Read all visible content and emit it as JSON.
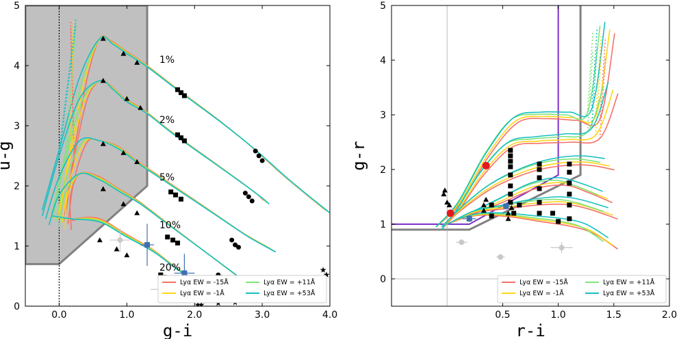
{
  "chart_data": [
    {
      "type": "line",
      "xlabel": "g-i",
      "ylabel": "u-g",
      "xlim": [
        -0.5,
        4.0
      ],
      "ylim": [
        0,
        5
      ],
      "xticks": [
        {
          "v": 0,
          "label": "0.0"
        },
        {
          "v": 1,
          "label": "1.0"
        },
        {
          "v": 2,
          "label": "2.0"
        },
        {
          "v": 3,
          "label": "3.0"
        },
        {
          "v": 4,
          "label": "4.0"
        }
      ],
      "yticks": [
        {
          "v": 0,
          "label": "0"
        },
        {
          "v": 1,
          "label": "1"
        },
        {
          "v": 2,
          "label": "2"
        },
        {
          "v": 3,
          "label": "3"
        },
        {
          "v": 4,
          "label": "4"
        },
        {
          "v": 5,
          "label": "5"
        }
      ],
      "selection_region": [
        [
          -0.5,
          0.7
        ],
        [
          0.0,
          0.7
        ],
        [
          1.3,
          2.0
        ],
        [
          1.3,
          5.0
        ],
        [
          -0.5,
          5.0
        ]
      ],
      "reference_lines": {
        "x": 0,
        "y": 0
      },
      "annotations": [
        {
          "text": "1%",
          "x": 1.4,
          "y": 4.1
        },
        {
          "text": "2%",
          "x": 1.4,
          "y": 3.1
        },
        {
          "text": "5%",
          "x": 1.4,
          "y": 2.15
        },
        {
          "text": "10%",
          "x": 1.4,
          "y": 1.35
        },
        {
          "text": "20%",
          "x": 1.4,
          "y": 0.65
        }
      ],
      "tracks": [
        {
          "name": "1%",
          "x": [
            -0.25,
            0.0,
            0.3,
            0.6,
            0.8,
            1.0,
            1.3,
            1.8,
            2.4,
            2.9,
            3.4,
            4.0
          ],
          "y": [
            1.6,
            2.6,
            3.8,
            4.45,
            4.35,
            4.2,
            3.98,
            3.55,
            3.05,
            2.6,
            2.1,
            1.55
          ],
          "curve": "middle"
        },
        {
          "name": "2%",
          "x": [
            -0.25,
            0.0,
            0.3,
            0.6,
            0.8,
            1.0,
            1.3,
            1.7,
            2.2,
            2.7,
            3.0,
            3.1
          ],
          "y": [
            1.5,
            2.5,
            3.45,
            3.75,
            3.6,
            3.4,
            3.2,
            2.85,
            2.45,
            2.05,
            1.8,
            1.7
          ],
          "curve": "middle"
        },
        {
          "name": "5%",
          "x": [
            -0.2,
            0.0,
            0.3,
            0.6,
            0.9,
            1.2,
            1.6,
            2.0,
            2.4,
            2.8,
            3.2
          ],
          "y": [
            1.45,
            2.15,
            2.75,
            2.75,
            2.6,
            2.35,
            2.05,
            1.75,
            1.45,
            1.15,
            0.9
          ],
          "curve": "middle"
        },
        {
          "name": "10%",
          "x": [
            -0.15,
            0.0,
            0.3,
            0.6,
            0.9,
            1.2,
            1.5,
            1.8,
            2.1,
            2.4,
            2.7
          ],
          "y": [
            1.35,
            1.85,
            2.2,
            2.1,
            1.9,
            1.7,
            1.45,
            1.2,
            0.95,
            0.7,
            0.45
          ],
          "curve": "middle"
        },
        {
          "name": "20%",
          "x": [
            -0.1,
            0.2,
            0.6,
            1.0,
            1.4,
            1.7,
            2.0,
            2.3,
            2.6
          ],
          "y": [
            1.5,
            1.45,
            1.4,
            1.15,
            0.9,
            0.65,
            0.42,
            0.25,
            0.12
          ],
          "curve": "middle"
        }
      ],
      "triangles": [
        [
          0.65,
          4.45
        ],
        [
          0.95,
          4.2
        ],
        [
          1.15,
          4.05
        ],
        [
          0.65,
          3.75
        ],
        [
          1.0,
          3.45
        ],
        [
          1.2,
          3.3
        ],
        [
          0.65,
          2.7
        ],
        [
          0.95,
          2.55
        ],
        [
          1.15,
          2.4
        ],
        [
          0.65,
          1.95
        ],
        [
          0.95,
          1.7
        ],
        [
          1.15,
          1.55
        ],
        [
          0.6,
          1.1
        ],
        [
          0.85,
          0.95
        ],
        [
          1.0,
          0.85
        ]
      ],
      "squares": [
        [
          1.75,
          3.6
        ],
        [
          1.8,
          3.55
        ],
        [
          1.85,
          3.5
        ],
        [
          1.75,
          2.85
        ],
        [
          1.8,
          2.8
        ],
        [
          1.85,
          2.75
        ],
        [
          1.65,
          1.9
        ],
        [
          1.72,
          1.85
        ],
        [
          1.8,
          1.78
        ],
        [
          1.6,
          1.15
        ],
        [
          1.68,
          1.1
        ],
        [
          1.75,
          1.05
        ],
        [
          1.5,
          0.52
        ],
        [
          1.55,
          0.48
        ],
        [
          1.6,
          0.45
        ]
      ],
      "circles": [
        [
          2.9,
          2.58
        ],
        [
          2.95,
          2.5
        ],
        [
          3.0,
          2.42
        ],
        [
          2.75,
          1.88
        ],
        [
          2.8,
          1.82
        ],
        [
          2.85,
          1.75
        ],
        [
          2.55,
          1.1
        ],
        [
          2.6,
          1.02
        ],
        [
          2.65,
          0.98
        ],
        [
          2.35,
          0.52
        ],
        [
          2.4,
          0.48
        ],
        [
          2.0,
          0.12
        ],
        [
          2.05,
          0.1
        ]
      ],
      "stars": [
        [
          3.95,
          0.52
        ],
        [
          3.9,
          0.6
        ],
        [
          3.55,
          0.2
        ],
        [
          3.3,
          0.22
        ],
        [
          3.2,
          0.18
        ],
        [
          2.95,
          0.15
        ],
        [
          2.7,
          0.1
        ],
        [
          2.6,
          0.06
        ],
        [
          2.35,
          0.05
        ],
        [
          2.1,
          0.02
        ],
        [
          2.05,
          0.02
        ]
      ],
      "blue_points": [
        {
          "x": 1.3,
          "y": 1.02,
          "xerr": 0.1,
          "yerr": 0.35
        },
        {
          "x": 1.85,
          "y": 0.55,
          "xerr": 0.15,
          "yerr": 0.32
        }
      ],
      "gray_points": [
        {
          "x": 0.9,
          "y": 1.1,
          "xerr": 0.15,
          "yerr": 0.2
        },
        {
          "x": 1.6,
          "y": 0.28,
          "xerr": 0.25,
          "yerr": 0.2
        }
      ],
      "legend": {
        "placement": "lower-right",
        "entries": [
          {
            "label": "Lyα EW = -15Å",
            "color": "#f47068"
          },
          {
            "label": "Lyα EW = +11Å",
            "color": "#7fe47a"
          },
          {
            "label": "Lyα EW = -1Å",
            "color": "#ffd416"
          },
          {
            "label": "Lyα EW = +53Å",
            "color": "#17bfc0"
          }
        ]
      }
    },
    {
      "type": "line",
      "xlabel": "r-i",
      "ylabel": "g-r",
      "xlim": [
        -0.5,
        2.0
      ],
      "ylim": [
        -0.5,
        5.0
      ],
      "xticks": [
        {
          "v": 0.5,
          "label": "0.5"
        },
        {
          "v": 1.0,
          "label": "1.0"
        },
        {
          "v": 1.5,
          "label": "1.5"
        },
        {
          "v": 2.0,
          "label": "2.0"
        }
      ],
      "yticks": [
        {
          "v": 0,
          "label": "0"
        },
        {
          "v": 1,
          "label": "1"
        },
        {
          "v": 2,
          "label": "2"
        },
        {
          "v": 3,
          "label": "3"
        },
        {
          "v": 4,
          "label": "4"
        },
        {
          "v": 5,
          "label": "5"
        }
      ],
      "selection_gray": [
        [
          -0.5,
          0.9
        ],
        [
          0.2,
          0.9
        ],
        [
          1.2,
          1.9
        ],
        [
          1.2,
          5.0
        ]
      ],
      "selection_purple": [
        [
          -0.5,
          1.0
        ],
        [
          0.2,
          1.0
        ],
        [
          1.0,
          1.9
        ],
        [
          1.0,
          5.0
        ]
      ],
      "reference_lines": {
        "x": 0,
        "y": 0
      },
      "tracks": [
        {
          "x": [
            -0.1,
            0.1,
            0.35,
            0.6,
            0.85,
            1.1,
            1.3,
            1.42
          ],
          "y": [
            0.95,
            1.4,
            2.3,
            2.95,
            3.05,
            3.05,
            3.1,
            4.7
          ],
          "curve": "top"
        },
        {
          "x": [
            -0.05,
            0.1,
            0.3,
            0.55,
            0.8,
            1.05,
            1.3,
            1.45
          ],
          "y": [
            0.9,
            1.3,
            1.95,
            2.5,
            2.6,
            2.65,
            2.75,
            3.6
          ],
          "curve": "top"
        },
        {
          "x": [
            -0.05,
            0.15,
            0.4,
            0.7,
            0.95,
            1.2,
            1.42
          ],
          "y": [
            0.95,
            1.35,
            1.75,
            2.05,
            2.2,
            2.25,
            2.2
          ],
          "curve": "top"
        },
        {
          "x": [
            0.0,
            0.2,
            0.45,
            0.75,
            1.0,
            1.2,
            1.4
          ],
          "y": [
            1.0,
            1.2,
            1.45,
            1.75,
            1.85,
            1.75,
            1.6
          ],
          "curve": "mid"
        },
        {
          "x": [
            0.05,
            0.25,
            0.5,
            0.75,
            1.0,
            1.2,
            1.45
          ],
          "y": [
            1.05,
            1.25,
            1.35,
            1.45,
            1.5,
            1.45,
            1.3
          ],
          "curve": "mid"
        },
        {
          "x": [
            0.1,
            0.3,
            0.55,
            0.8,
            1.05,
            1.25,
            1.45
          ],
          "y": [
            1.1,
            1.2,
            1.2,
            1.15,
            1.1,
            1.0,
            0.75
          ],
          "curve": "mid"
        }
      ],
      "triangles": [
        [
          -0.03,
          1.55
        ],
        [
          -0.02,
          1.62
        ],
        [
          0.0,
          1.4
        ],
        [
          0.02,
          1.35
        ],
        [
          0.33,
          1.35
        ],
        [
          0.33,
          1.25
        ],
        [
          0.35,
          1.45
        ],
        [
          0.55,
          1.2
        ],
        [
          0.55,
          1.1
        ],
        [
          0.58,
          1.3
        ]
      ],
      "squares": [
        [
          0.57,
          2.35
        ],
        [
          0.57,
          2.25
        ],
        [
          0.57,
          2.15
        ],
        [
          0.57,
          2.05
        ],
        [
          0.57,
          1.9
        ],
        [
          0.57,
          1.7
        ],
        [
          0.57,
          1.55
        ],
        [
          0.57,
          1.4
        ],
        [
          0.83,
          2.1
        ],
        [
          0.83,
          2.0
        ],
        [
          0.83,
          1.85
        ],
        [
          0.83,
          1.65
        ],
        [
          0.83,
          1.4
        ],
        [
          0.83,
          1.2
        ],
        [
          1.1,
          2.1
        ],
        [
          1.1,
          1.95
        ],
        [
          1.1,
          1.75
        ],
        [
          1.1,
          1.55
        ],
        [
          1.1,
          1.35
        ],
        [
          1.1,
          1.1
        ],
        [
          0.4,
          1.35
        ],
        [
          0.4,
          1.15
        ],
        [
          0.6,
          1.2
        ],
        [
          0.65,
          1.35
        ],
        [
          0.95,
          1.2
        ],
        [
          1.0,
          1.05
        ]
      ],
      "red_points": [
        [
          0.03,
          1.2
        ],
        [
          0.35,
          2.07
        ]
      ],
      "blue_points": [
        {
          "x": 0.2,
          "y": 1.1,
          "xerr": 0.06,
          "yerr": 0.06
        },
        {
          "x": 0.53,
          "y": 1.33,
          "xerr": 0.04,
          "yerr": 0.06
        }
      ],
      "gray_points": [
        {
          "x": 0.13,
          "y": 0.67,
          "xerr": 0.05,
          "yerr": 0.05
        },
        {
          "x": 0.48,
          "y": 0.4,
          "xerr": 0.04,
          "yerr": 0.05
        },
        {
          "x": 1.03,
          "y": 0.57,
          "xerr": 0.1,
          "yerr": 0.1
        }
      ],
      "legend": {
        "placement": "lower-right",
        "entries": [
          {
            "label": "Lyα EW = -15Å",
            "color": "#f47068"
          },
          {
            "label": "Lyα EW = +11Å",
            "color": "#7fe47a"
          },
          {
            "label": "Lyα EW = -1Å",
            "color": "#ffd416"
          },
          {
            "label": "Lyα EW = +53Å",
            "color": "#17bfc0"
          }
        ]
      }
    }
  ],
  "colors": {
    "red": "#f47068",
    "yellow": "#ffd416",
    "green": "#7fe47a",
    "cyan": "#17bfc0",
    "region_fill": "#c0c0c0",
    "region_edge": "#808080",
    "purple": "#7b2fc9",
    "blue_point": "#3f6fb0",
    "gray_point": "#c8c8c8",
    "red_point": "#e31a1c"
  }
}
